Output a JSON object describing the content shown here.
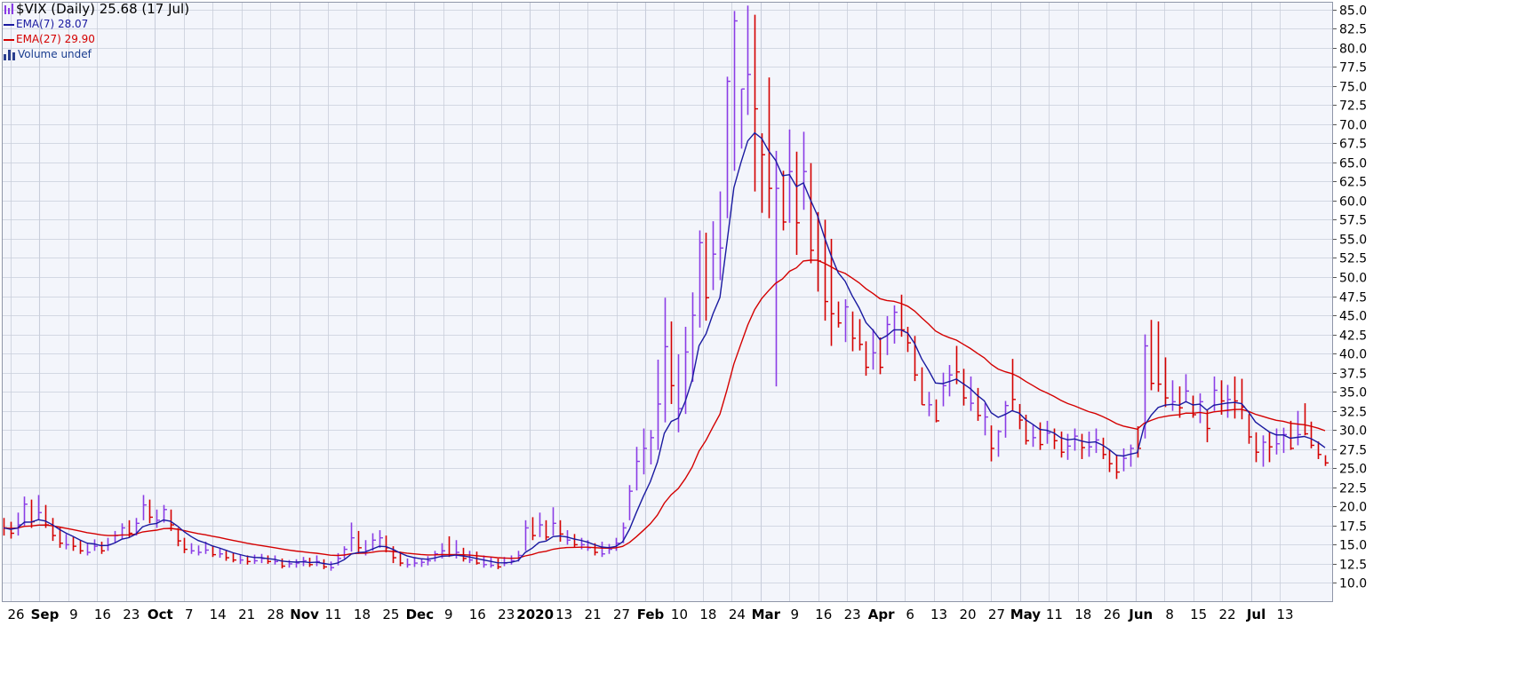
{
  "legend": {
    "title": "$VIX (Daily) 25.68 (17 Jul)",
    "ema7": "EMA(7) 28.07",
    "ema27": "EMA(27) 29.90",
    "volume": "Volume undef"
  },
  "colors": {
    "background": "#f3f5fb",
    "grid": "#c9cedb",
    "up_bar": "#8a3ce6",
    "down_bar": "#d40000",
    "ema7": "#1a1aa0",
    "ema27": "#d40000"
  },
  "chart_data": {
    "type": "line",
    "title": "$VIX (Daily) 25.68 (17 Jul)",
    "ylim": [
      7.5,
      86
    ],
    "y_ticks": [
      "85.0",
      "82.5",
      "80.0",
      "77.5",
      "75.0",
      "72.5",
      "70.0",
      "67.5",
      "65.0",
      "62.5",
      "60.0",
      "57.5",
      "55.0",
      "52.5",
      "50.0",
      "47.5",
      "45.0",
      "42.5",
      "40.0",
      "37.5",
      "35.0",
      "32.5",
      "30.0",
      "27.5",
      "25.0",
      "22.5",
      "20.0",
      "17.5",
      "15.0",
      "12.5",
      "10.0"
    ],
    "x_ticks": [
      {
        "label": "26",
        "bold": false
      },
      {
        "label": "Sep",
        "bold": true
      },
      {
        "label": "9",
        "bold": false
      },
      {
        "label": "16",
        "bold": false
      },
      {
        "label": "23",
        "bold": false
      },
      {
        "label": "Oct",
        "bold": true
      },
      {
        "label": "7",
        "bold": false
      },
      {
        "label": "14",
        "bold": false
      },
      {
        "label": "21",
        "bold": false
      },
      {
        "label": "28",
        "bold": false
      },
      {
        "label": "Nov",
        "bold": true
      },
      {
        "label": "11",
        "bold": false
      },
      {
        "label": "18",
        "bold": false
      },
      {
        "label": "25",
        "bold": false
      },
      {
        "label": "Dec",
        "bold": true
      },
      {
        "label": "9",
        "bold": false
      },
      {
        "label": "16",
        "bold": false
      },
      {
        "label": "23",
        "bold": false
      },
      {
        "label": "2020",
        "bold": true
      },
      {
        "label": "13",
        "bold": false
      },
      {
        "label": "21",
        "bold": false
      },
      {
        "label": "27",
        "bold": false
      },
      {
        "label": "Feb",
        "bold": true
      },
      {
        "label": "10",
        "bold": false
      },
      {
        "label": "18",
        "bold": false
      },
      {
        "label": "24",
        "bold": false
      },
      {
        "label": "Mar",
        "bold": true
      },
      {
        "label": "9",
        "bold": false
      },
      {
        "label": "16",
        "bold": false
      },
      {
        "label": "23",
        "bold": false
      },
      {
        "label": "Apr",
        "bold": true
      },
      {
        "label": "6",
        "bold": false
      },
      {
        "label": "13",
        "bold": false
      },
      {
        "label": "20",
        "bold": false
      },
      {
        "label": "27",
        "bold": false
      },
      {
        "label": "May",
        "bold": true
      },
      {
        "label": "11",
        "bold": false
      },
      {
        "label": "18",
        "bold": false
      },
      {
        "label": "26",
        "bold": false
      },
      {
        "label": "Jun",
        "bold": true
      },
      {
        "label": "8",
        "bold": false
      },
      {
        "label": "15",
        "bold": false
      },
      {
        "label": "22",
        "bold": false
      },
      {
        "label": "Jul",
        "bold": true
      },
      {
        "label": "13",
        "bold": false
      }
    ],
    "bars": [
      [
        18.5,
        16.2,
        17.2,
        0
      ],
      [
        18.0,
        15.8,
        16.5,
        0
      ],
      [
        19.2,
        16.2,
        17.6,
        1
      ],
      [
        21.3,
        17.5,
        20.3,
        1
      ],
      [
        20.9,
        17.2,
        18.0,
        0
      ],
      [
        21.5,
        18.2,
        19.2,
        1
      ],
      [
        20.2,
        17.2,
        17.6,
        0
      ],
      [
        18.5,
        15.5,
        16.2,
        0
      ],
      [
        17.2,
        14.6,
        15.2,
        0
      ],
      [
        16.4,
        14.4,
        15.0,
        1
      ],
      [
        16.0,
        14.2,
        14.8,
        0
      ],
      [
        15.6,
        13.8,
        14.2,
        0
      ],
      [
        15.2,
        13.6,
        14.0,
        1
      ],
      [
        15.7,
        14.2,
        14.8,
        1
      ],
      [
        15.4,
        13.8,
        14.2,
        0
      ],
      [
        15.9,
        14.2,
        15.0,
        1
      ],
      [
        16.8,
        15.2,
        16.2,
        1
      ],
      [
        17.8,
        15.7,
        17.2,
        1
      ],
      [
        18.2,
        15.9,
        16.5,
        0
      ],
      [
        18.5,
        16.2,
        17.8,
        1
      ],
      [
        21.5,
        18.2,
        20.2,
        1
      ],
      [
        20.9,
        17.8,
        18.6,
        0
      ],
      [
        19.6,
        17.2,
        18.2,
        1
      ],
      [
        20.2,
        17.9,
        19.6,
        1
      ],
      [
        19.6,
        16.8,
        17.6,
        0
      ],
      [
        17.2,
        14.8,
        15.5,
        0
      ],
      [
        15.9,
        13.9,
        14.4,
        0
      ],
      [
        15.2,
        13.8,
        14.2,
        1
      ],
      [
        14.9,
        13.6,
        14.0,
        1
      ],
      [
        15.4,
        13.8,
        14.3,
        1
      ],
      [
        14.8,
        13.4,
        13.7,
        0
      ],
      [
        14.6,
        13.3,
        13.8,
        1
      ],
      [
        14.2,
        12.9,
        13.3,
        0
      ],
      [
        13.9,
        12.7,
        13.0,
        0
      ],
      [
        13.7,
        12.5,
        13.0,
        1
      ],
      [
        13.6,
        12.4,
        12.8,
        0
      ],
      [
        13.7,
        12.5,
        12.9,
        1
      ],
      [
        13.8,
        12.6,
        13.2,
        1
      ],
      [
        13.6,
        12.5,
        12.8,
        0
      ],
      [
        13.6,
        12.4,
        12.8,
        1
      ],
      [
        13.2,
        11.9,
        12.2,
        0
      ],
      [
        13.0,
        12.0,
        12.5,
        1
      ],
      [
        13.1,
        12.0,
        12.6,
        1
      ],
      [
        13.4,
        12.2,
        12.9,
        1
      ],
      [
        13.3,
        12.1,
        12.4,
        0
      ],
      [
        13.6,
        12.2,
        12.8,
        1
      ],
      [
        13.1,
        11.8,
        12.1,
        0
      ],
      [
        12.8,
        11.6,
        12.0,
        1
      ],
      [
        13.9,
        12.3,
        13.2,
        1
      ],
      [
        14.8,
        13.2,
        14.4,
        1
      ],
      [
        17.9,
        14.1,
        15.9,
        1
      ],
      [
        16.8,
        13.8,
        14.6,
        0
      ],
      [
        15.6,
        13.6,
        14.2,
        1
      ],
      [
        16.5,
        14.2,
        15.6,
        1
      ],
      [
        16.9,
        14.6,
        15.9,
        1
      ],
      [
        16.2,
        14.0,
        14.6,
        0
      ],
      [
        14.8,
        12.6,
        13.3,
        0
      ],
      [
        14.1,
        12.2,
        12.6,
        0
      ],
      [
        13.2,
        12.0,
        12.4,
        1
      ],
      [
        13.4,
        12.1,
        12.6,
        1
      ],
      [
        13.2,
        12.1,
        12.7,
        1
      ],
      [
        13.5,
        12.3,
        12.9,
        1
      ],
      [
        14.2,
        12.8,
        13.8,
        1
      ],
      [
        15.2,
        13.2,
        14.2,
        1
      ],
      [
        16.1,
        13.4,
        13.6,
        0
      ],
      [
        15.6,
        13.2,
        14.0,
        1
      ],
      [
        14.6,
        12.8,
        13.2,
        0
      ],
      [
        14.2,
        12.6,
        13.0,
        1
      ],
      [
        14.1,
        12.4,
        12.6,
        0
      ],
      [
        13.6,
        12.0,
        12.4,
        1
      ],
      [
        13.4,
        12.0,
        12.3,
        1
      ],
      [
        13.2,
        11.8,
        12.1,
        0
      ],
      [
        13.4,
        12.2,
        12.6,
        1
      ],
      [
        13.6,
        12.4,
        12.9,
        1
      ],
      [
        14.2,
        12.8,
        13.6,
        1
      ],
      [
        18.2,
        14.2,
        17.2,
        1
      ],
      [
        18.6,
        15.6,
        16.2,
        0
      ],
      [
        19.2,
        16.0,
        17.6,
        1
      ],
      [
        18.2,
        15.6,
        16.0,
        0
      ],
      [
        19.9,
        16.2,
        17.8,
        1
      ],
      [
        18.2,
        15.4,
        16.4,
        0
      ],
      [
        16.9,
        15.0,
        15.6,
        1
      ],
      [
        16.4,
        14.6,
        15.0,
        0
      ],
      [
        15.9,
        14.4,
        15.0,
        1
      ],
      [
        15.6,
        14.2,
        14.6,
        1
      ],
      [
        15.2,
        13.6,
        14.0,
        0
      ],
      [
        15.4,
        13.4,
        13.8,
        1
      ],
      [
        15.1,
        13.8,
        14.4,
        1
      ],
      [
        15.9,
        14.2,
        15.2,
        1
      ],
      [
        17.9,
        15.2,
        17.2,
        1
      ],
      [
        22.8,
        18.2,
        22.0,
        1
      ],
      [
        27.8,
        22.1,
        25.9,
        1
      ],
      [
        30.2,
        24.2,
        27.6,
        1
      ],
      [
        30.0,
        25.5,
        29.0,
        1
      ],
      [
        39.2,
        27.4,
        33.4,
        1
      ],
      [
        47.3,
        31.0,
        40.9,
        1
      ],
      [
        44.2,
        33.4,
        35.8,
        0
      ],
      [
        39.9,
        29.7,
        32.8,
        1
      ],
      [
        43.5,
        32.1,
        40.2,
        1
      ],
      [
        48.0,
        36.3,
        45.0,
        1
      ],
      [
        56.1,
        43.4,
        54.5,
        1
      ],
      [
        55.8,
        44.3,
        47.3,
        0
      ],
      [
        57.3,
        48.3,
        53.0,
        1
      ],
      [
        61.2,
        49.6,
        53.8,
        1
      ],
      [
        76.2,
        57.7,
        75.6,
        1
      ],
      [
        84.8,
        63.9,
        83.5,
        1
      ],
      [
        74.6,
        66.8,
        74.6,
        1
      ],
      [
        85.5,
        71.2,
        76.5,
        1
      ],
      [
        84.3,
        61.2,
        72.0,
        0
      ],
      [
        68.8,
        58.4,
        66.0,
        0
      ],
      [
        76.1,
        57.7,
        61.6,
        0
      ],
      [
        66.5,
        35.7,
        61.6,
        1
      ],
      [
        63.9,
        56.1,
        57.2,
        0
      ],
      [
        69.3,
        57.1,
        63.8,
        1
      ],
      [
        66.4,
        52.9,
        57.1,
        0
      ],
      [
        69.0,
        58.8,
        63.8,
        1
      ],
      [
        64.9,
        51.8,
        53.5,
        0
      ],
      [
        58.5,
        48.1,
        52.1,
        0
      ],
      [
        57.5,
        44.3,
        46.8,
        0
      ],
      [
        55.0,
        41.0,
        45.2,
        0
      ],
      [
        46.8,
        43.4,
        44.0,
        0
      ],
      [
        47.1,
        41.5,
        46.1,
        1
      ],
      [
        45.5,
        40.3,
        42.0,
        0
      ],
      [
        44.5,
        40.4,
        41.2,
        0
      ],
      [
        41.6,
        37.1,
        38.2,
        0
      ],
      [
        43.2,
        37.9,
        40.1,
        1
      ],
      [
        42.1,
        37.3,
        38.2,
        0
      ],
      [
        44.9,
        39.8,
        43.8,
        1
      ],
      [
        46.3,
        41.3,
        45.4,
        1
      ],
      [
        47.7,
        42.2,
        43.1,
        0
      ],
      [
        43.5,
        40.2,
        41.4,
        0
      ],
      [
        42.3,
        36.4,
        37.2,
        0
      ],
      [
        38.2,
        33.3,
        33.3,
        0
      ],
      [
        35.0,
        31.8,
        33.3,
        1
      ],
      [
        34.0,
        31.0,
        31.2,
        0
      ],
      [
        37.5,
        33.1,
        35.8,
        1
      ],
      [
        38.5,
        34.4,
        37.2,
        1
      ],
      [
        41.0,
        36.0,
        37.6,
        0
      ],
      [
        38.0,
        33.2,
        34.2,
        0
      ],
      [
        37.0,
        32.5,
        33.5,
        1
      ],
      [
        35.5,
        31.2,
        31.9,
        0
      ],
      [
        33.5,
        29.3,
        31.7,
        1
      ],
      [
        30.6,
        25.9,
        27.6,
        0
      ],
      [
        30.0,
        26.5,
        29.8,
        1
      ],
      [
        33.8,
        29.0,
        33.2,
        1
      ],
      [
        39.3,
        32.5,
        34.0,
        0
      ],
      [
        33.4,
        30.1,
        31.3,
        0
      ],
      [
        32.0,
        28.1,
        28.6,
        0
      ],
      [
        30.7,
        27.8,
        29.0,
        1
      ],
      [
        31.0,
        27.4,
        28.1,
        0
      ],
      [
        31.2,
        28.2,
        29.6,
        1
      ],
      [
        30.2,
        27.5,
        28.6,
        0
      ],
      [
        29.8,
        26.4,
        27.1,
        0
      ],
      [
        29.5,
        26.1,
        27.9,
        1
      ],
      [
        30.2,
        27.3,
        29.2,
        1
      ],
      [
        29.5,
        26.2,
        27.7,
        0
      ],
      [
        29.8,
        26.5,
        27.8,
        1
      ],
      [
        30.2,
        27.0,
        28.7,
        1
      ],
      [
        29.0,
        26.2,
        26.8,
        0
      ],
      [
        27.5,
        24.5,
        25.6,
        0
      ],
      [
        26.8,
        23.6,
        24.5,
        0
      ],
      [
        27.6,
        24.6,
        26.3,
        1
      ],
      [
        28.1,
        25.2,
        27.6,
        1
      ],
      [
        30.5,
        26.4,
        27.6,
        0
      ],
      [
        42.5,
        28.9,
        41.0,
        1
      ],
      [
        44.4,
        35.2,
        36.1,
        0
      ],
      [
        44.2,
        35.0,
        36.0,
        0
      ],
      [
        39.5,
        33.0,
        34.2,
        0
      ],
      [
        36.5,
        32.5,
        33.7,
        1
      ],
      [
        35.7,
        31.6,
        32.9,
        0
      ],
      [
        37.3,
        33.6,
        35.1,
        1
      ],
      [
        34.5,
        31.6,
        32.0,
        0
      ],
      [
        34.8,
        30.9,
        33.7,
        1
      ],
      [
        32.6,
        28.4,
        30.2,
        0
      ],
      [
        37.0,
        32.5,
        35.2,
        1
      ],
      [
        36.5,
        32.0,
        33.8,
        0
      ],
      [
        35.9,
        31.6,
        34.0,
        1
      ],
      [
        37.0,
        31.5,
        33.8,
        0
      ],
      [
        36.7,
        31.4,
        33.0,
        0
      ],
      [
        32.1,
        28.2,
        29.1,
        0
      ],
      [
        29.7,
        25.8,
        27.1,
        0
      ],
      [
        29.3,
        25.2,
        28.4,
        1
      ],
      [
        29.7,
        25.8,
        27.8,
        0
      ],
      [
        30.2,
        26.8,
        28.2,
        1
      ],
      [
        30.3,
        27.0,
        29.4,
        1
      ],
      [
        31.2,
        27.4,
        27.6,
        0
      ],
      [
        32.5,
        28.0,
        29.4,
        1
      ],
      [
        33.5,
        29.3,
        29.5,
        0
      ],
      [
        31.1,
        27.6,
        28.0,
        0
      ],
      [
        28.5,
        26.2,
        26.8,
        0
      ],
      [
        26.7,
        25.3,
        25.7,
        0
      ]
    ]
  }
}
